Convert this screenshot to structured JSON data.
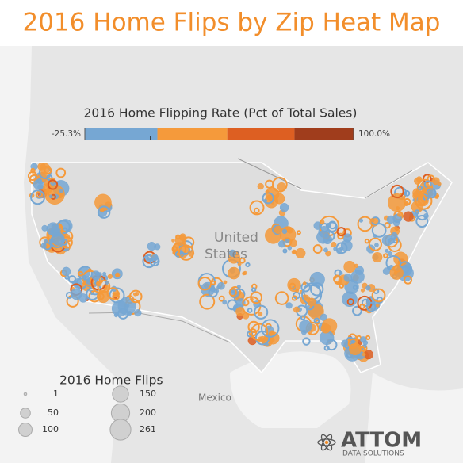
{
  "title": "2016 Home Flips by Zip Heat Map",
  "map": {
    "country_labels": [
      "United",
      "States",
      "Mexico"
    ]
  },
  "color_legend": {
    "title": "2016 Home Flipping Rate (Pct of Total Sales)",
    "min": {
      "value": -25.3,
      "label": "-25.3%"
    },
    "max": {
      "value": 100.0,
      "label": "100.0%"
    },
    "colors": [
      "#76a7d3",
      "#f59a3b",
      "#dd5f22",
      "#a03d1c"
    ]
  },
  "size_legend": {
    "title": "2016 Home Flips",
    "values": [
      1,
      50,
      100,
      150,
      200,
      261
    ]
  },
  "logo": {
    "name": "ATTOM",
    "tagline": "DATA SOLUTIONS"
  }
}
